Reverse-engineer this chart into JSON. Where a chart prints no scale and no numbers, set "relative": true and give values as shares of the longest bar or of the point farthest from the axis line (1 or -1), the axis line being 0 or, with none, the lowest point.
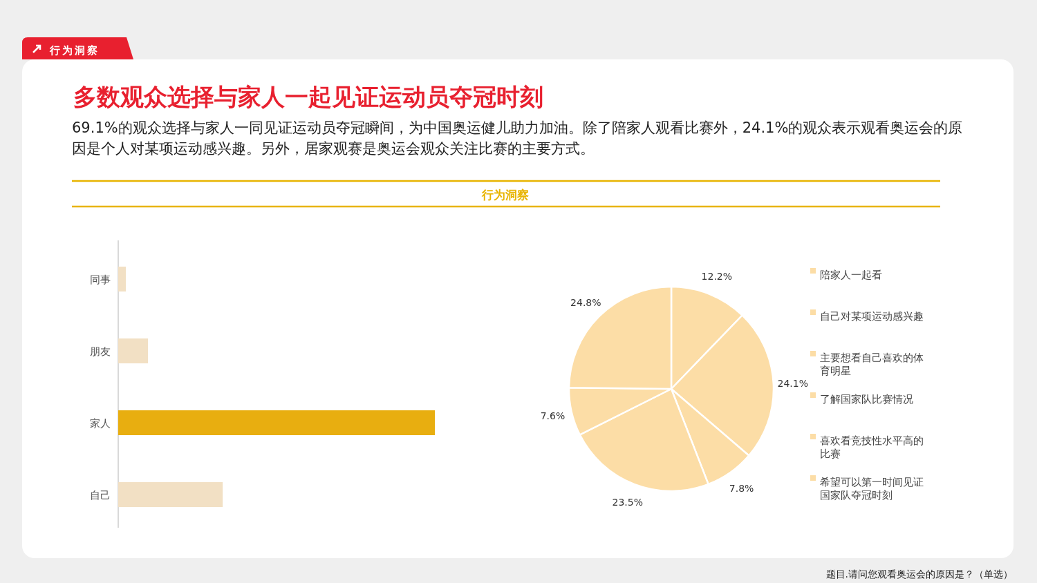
{
  "chart_data": [
    {
      "type": "bar",
      "orientation": "horizontal",
      "relative": true,
      "title": "多数观众选择与家人一起见证运动员夺冠时刻",
      "subtitle": "69.1%的观众选择与家人一同见证运动员夺冠瞬间，为中国奥运健儿助力加油。除了陪家人观看比赛外，24.1%的观众表示观看奥运会的原因是个人对某项运动感兴趣。另外，居家观赛是奥运会观众关注比赛的主要方式。",
      "annotations": [
        "行为洞察",
        "行为洞察",
        "题目.请问您观看奥运会的原因是？（单选）"
      ],
      "categories": [
        "同事",
        "朋友",
        "家人",
        "自己"
      ],
      "values": [
        0.024,
        0.094,
        1,
        0.33
      ],
      "colors": [
        "#f2e0c4",
        "#f2e0c4",
        "#e8ae10",
        "#f2e0c4"
      ]
    },
    {
      "type": "pie",
      "categories": [
        "陪家人一起看",
        "自己对某项运动感兴趣",
        "主要想看自己喜欢的体育明星",
        "了解国家队比赛情况",
        "喜欢看竞技性水平高的比赛",
        "希望可以第一时间见证国家队夺冠时刻"
      ],
      "values": [
        12.2,
        24.1,
        7.8,
        23.5,
        7.6,
        24.8
      ],
      "value_labels": [
        "12.2%",
        "24.1%",
        "7.8%",
        "23.5%",
        "7.6%",
        "24.8%"
      ],
      "colors": [
        "#fcdda6",
        "#fcdda6",
        "#fcdda6",
        "#fcdda6",
        "#fcdda6",
        "#fcdda6"
      ],
      "legend": "right"
    }
  ]
}
